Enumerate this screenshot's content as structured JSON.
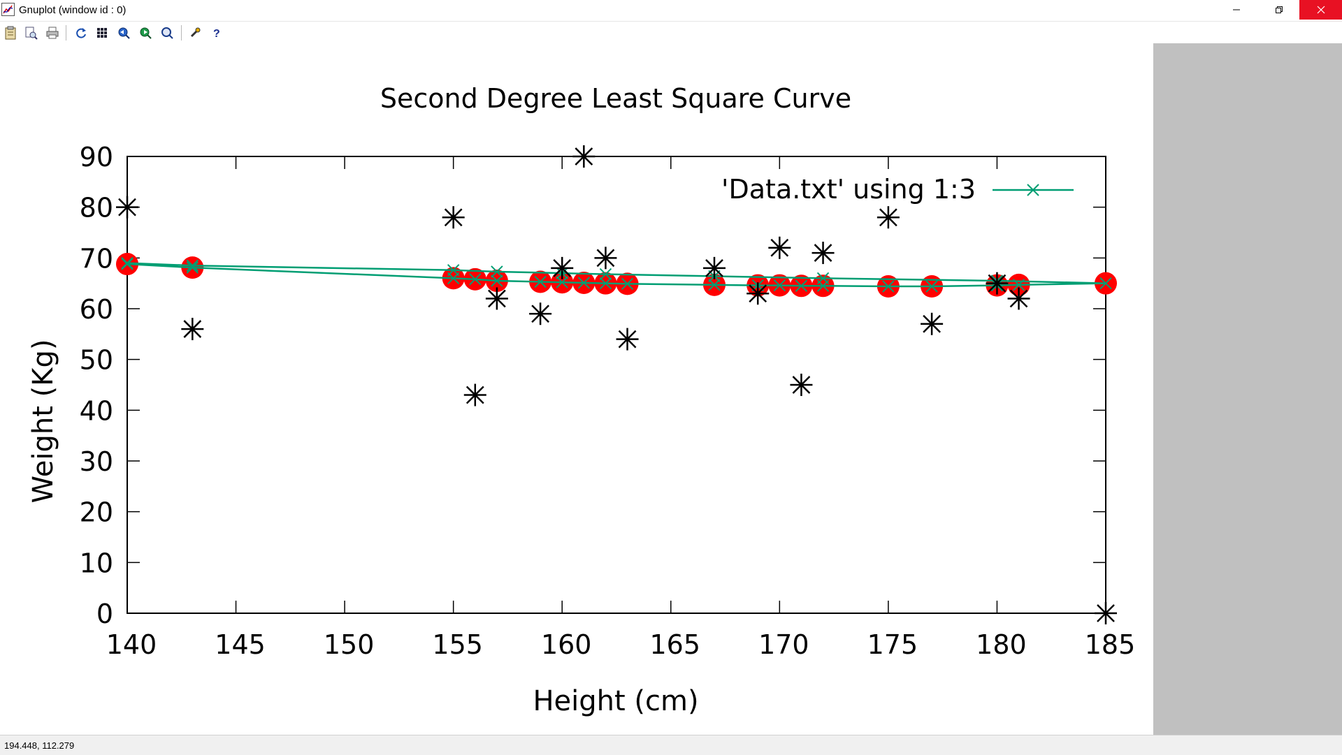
{
  "window": {
    "title": "Gnuplot (window id : 0)",
    "controls": [
      "minimize-icon",
      "restore-icon",
      "close-icon"
    ]
  },
  "toolbar": {
    "icons": [
      "clipboard-icon",
      "print-preview-icon",
      "print-icon",
      "replot-icon",
      "grid-icon",
      "zoom-previous-icon",
      "zoom-next-icon",
      "autoscale-icon",
      "options-wrench-icon",
      "help-icon"
    ]
  },
  "status": {
    "coords": "194.448,  112.279"
  },
  "colors": {
    "fit_line": "#009e73",
    "fit_marker": "#ff0000",
    "data_marker": "#000000",
    "right_panel": "#c0c0c0",
    "close_button": "#e81123"
  },
  "chart_data": {
    "type": "scatter",
    "title": "Second Degree Least Square Curve",
    "xlabel": "Height (cm)",
    "ylabel": "Weight (Kg)",
    "xlim": [
      140,
      185
    ],
    "ylim": [
      0,
      90
    ],
    "x_ticks": [
      "140",
      "145",
      "150",
      "155",
      "160",
      "165",
      "170",
      "175",
      "180",
      "185"
    ],
    "y_ticks": [
      "0",
      "10",
      "20",
      "30",
      "40",
      "50",
      "60",
      "70",
      "80",
      "90"
    ],
    "grid": false,
    "legend_position": "top-right",
    "series": [
      {
        "name": "'Data.txt' using 1:3",
        "style": "linespoints",
        "x": [
          140,
          143,
          155,
          156,
          157,
          159,
          160,
          161,
          162,
          163,
          167,
          169,
          170,
          171,
          172,
          175,
          177,
          180,
          181,
          185,
          180,
          172,
          167,
          162,
          160,
          157,
          155,
          143,
          140
        ],
        "y": [
          68.8,
          68.1,
          66.0,
          65.8,
          65.5,
          65.3,
          65.2,
          65.1,
          65.0,
          64.9,
          64.7,
          64.6,
          64.6,
          64.5,
          64.5,
          64.4,
          64.4,
          64.6,
          64.7,
          65.0,
          65.5,
          66.0,
          66.4,
          66.8,
          67.0,
          67.3,
          67.6,
          68.5,
          69.0
        ]
      },
      {
        "style": "points-circle",
        "x": [
          140,
          143,
          155,
          156,
          157,
          159,
          160,
          161,
          162,
          163,
          167,
          169,
          170,
          171,
          172,
          175,
          177,
          180,
          181,
          185
        ],
        "y": [
          68.8,
          68.1,
          66.0,
          65.8,
          65.5,
          65.3,
          65.2,
          65.1,
          65.0,
          64.9,
          64.7,
          64.6,
          64.6,
          64.5,
          64.5,
          64.4,
          64.4,
          64.6,
          64.7,
          65.0
        ]
      },
      {
        "style": "points-star",
        "x": [
          140,
          143,
          155,
          156,
          157,
          159,
          160,
          161,
          162,
          163,
          167,
          169,
          170,
          171,
          172,
          175,
          177,
          180,
          181,
          185
        ],
        "y": [
          80,
          56,
          78,
          43,
          62,
          59,
          68,
          90,
          70,
          54,
          68,
          63,
          72,
          45,
          71,
          78,
          57,
          65,
          62,
          0
        ]
      }
    ]
  }
}
